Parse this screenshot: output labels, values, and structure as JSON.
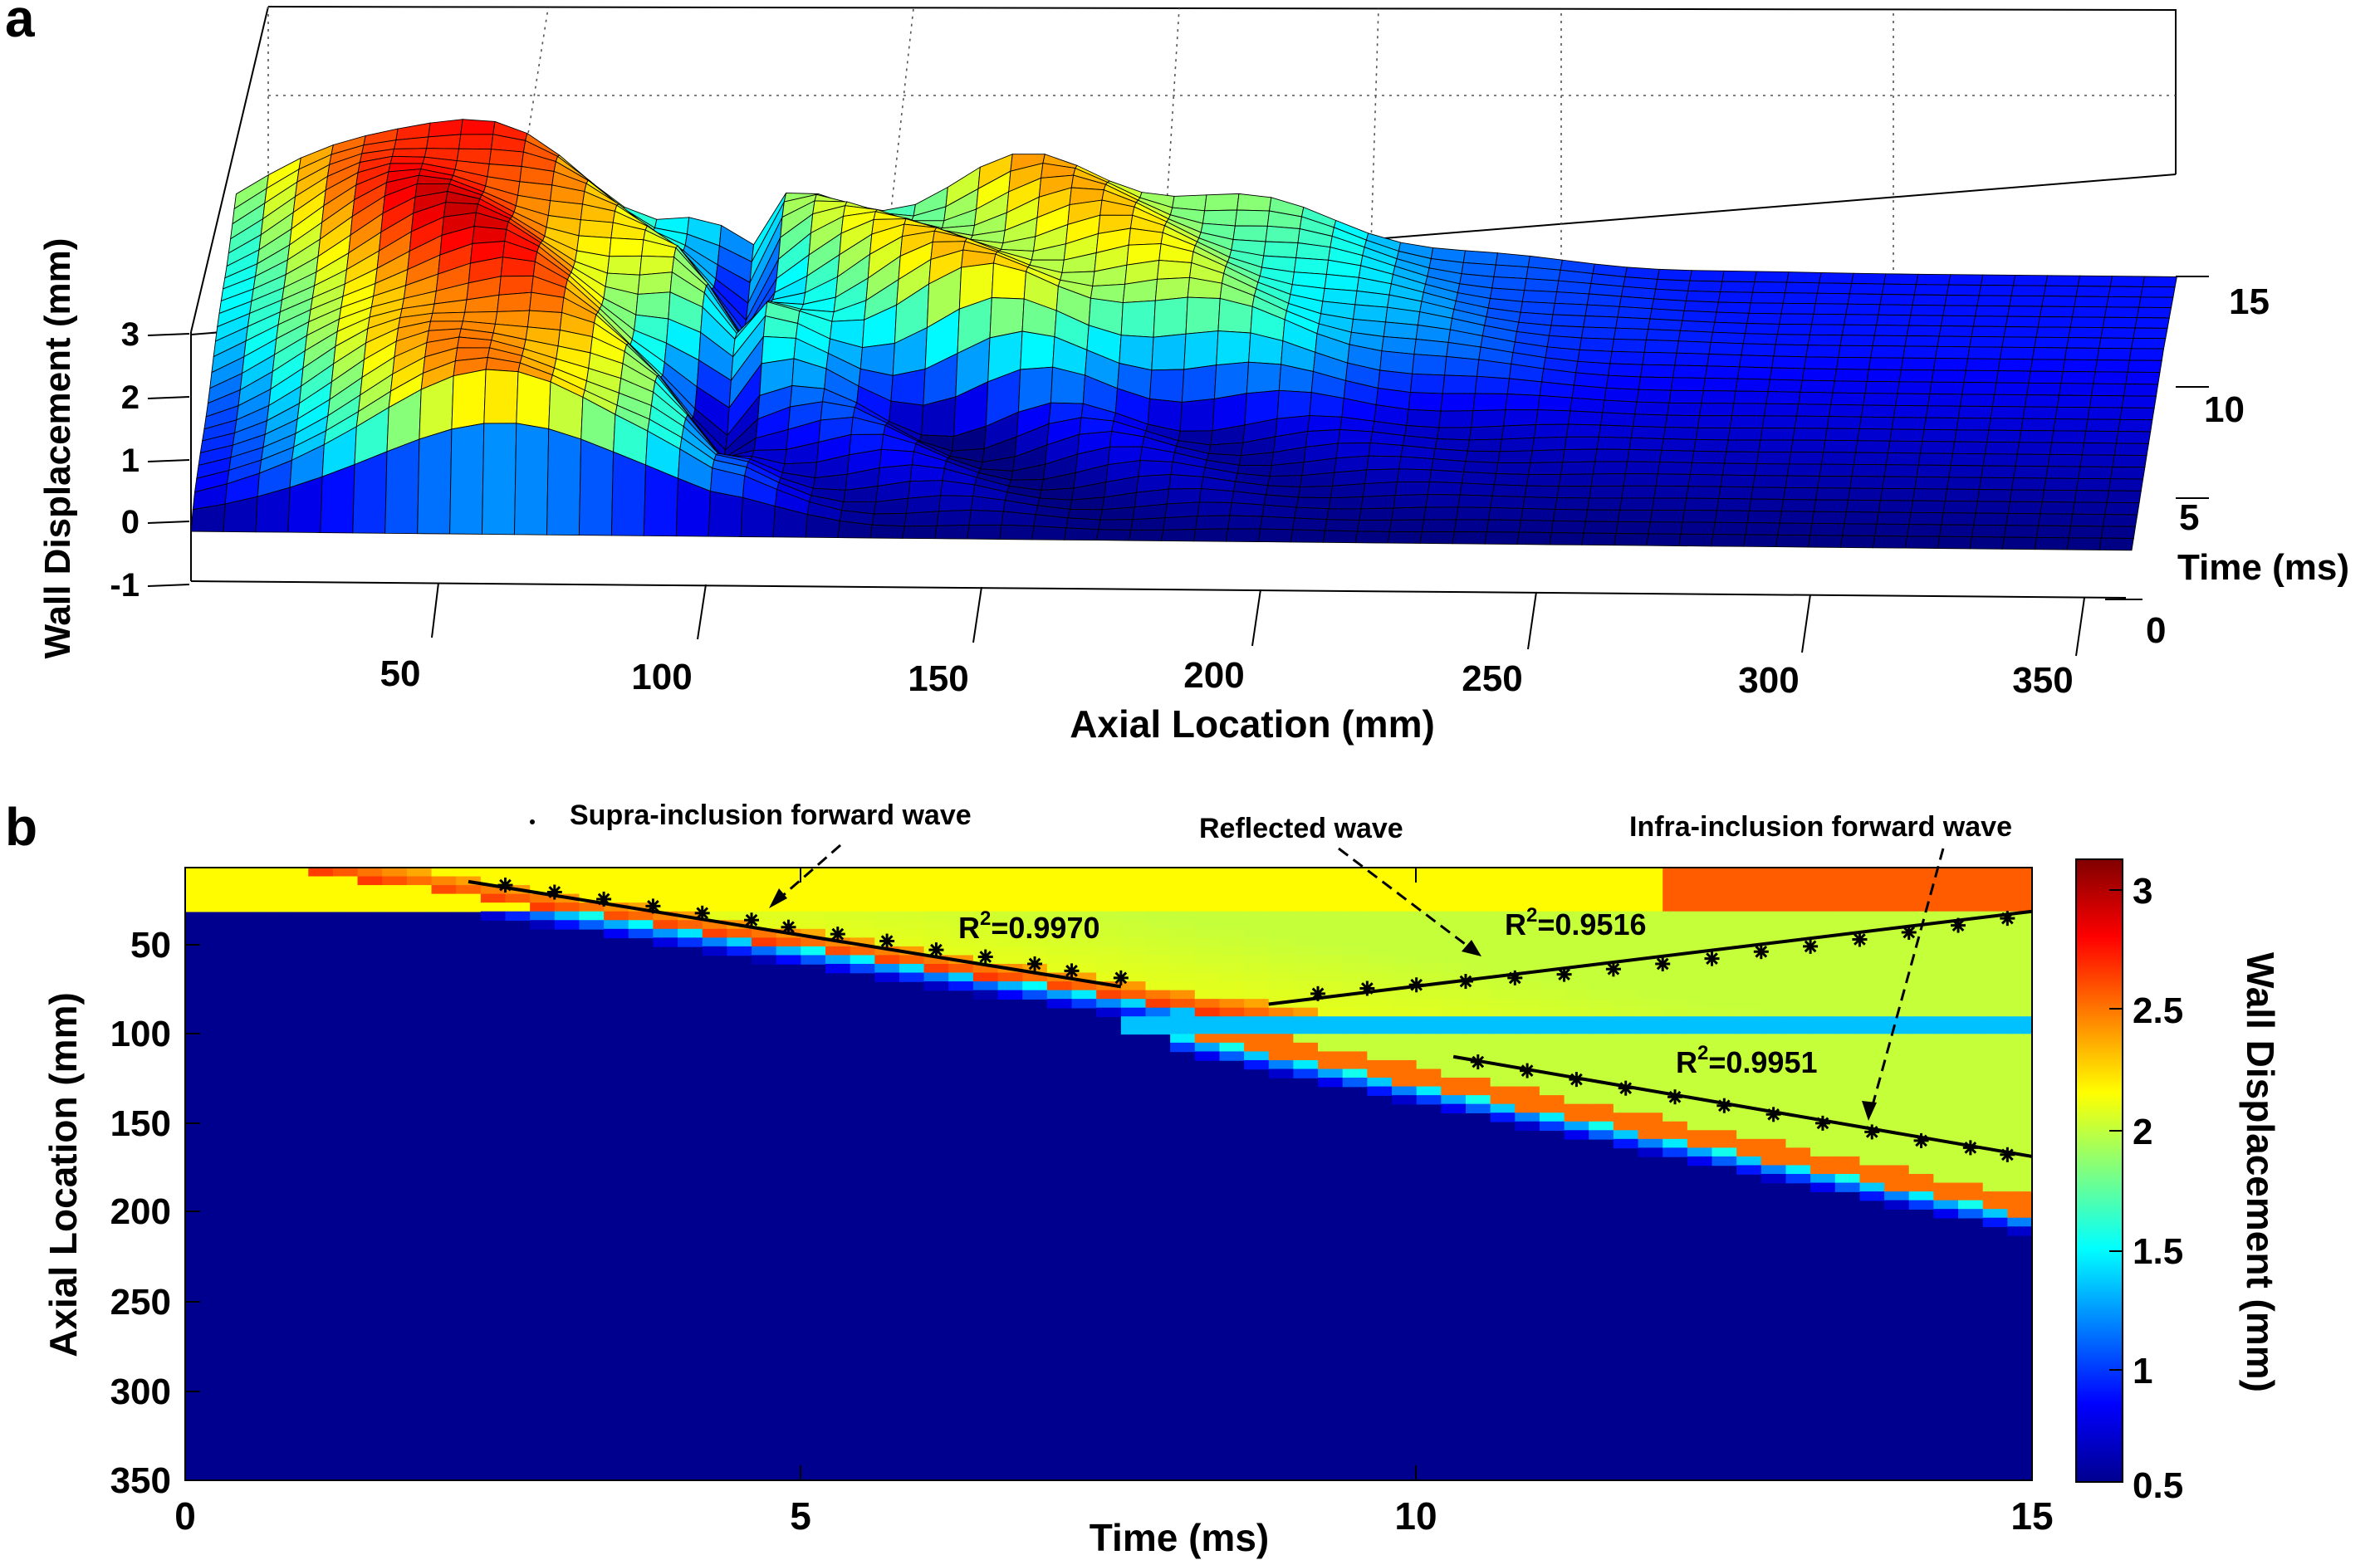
{
  "panels": {
    "a": {
      "letter": "a"
    },
    "b": {
      "letter": "b"
    }
  },
  "chart_data": [
    {
      "panel": "a",
      "type": "surface",
      "zlabel": "Wall Displacement (mm)",
      "xlabel": "Axial Location (mm)",
      "ylabel": "Time (ms)",
      "z_ticks": [
        "3",
        "2",
        "1",
        "0",
        "-1"
      ],
      "x_ticks": [
        "50",
        "100",
        "150",
        "200",
        "250",
        "300",
        "350"
      ],
      "y_ticks": [
        "15",
        "10",
        "5",
        "0"
      ],
      "zlim": [
        -1,
        3
      ],
      "xlim": [
        0,
        380
      ],
      "ylim": [
        0,
        17
      ],
      "grid": true,
      "colormap": "jet"
    },
    {
      "panel": "b",
      "type": "heatmap",
      "xlabel": "Time (ms)",
      "ylabel": "Axial Location (mm)",
      "x_ticks": [
        "0",
        "5",
        "10",
        "15"
      ],
      "y_ticks": [
        "50",
        "100",
        "150",
        "200",
        "250",
        "300",
        "350"
      ],
      "xlim": [
        0,
        15
      ],
      "ylim": [
        0,
        350
      ],
      "y_reversed": true,
      "colorbar": {
        "label": "Wall Displacement (mm)",
        "ticks": [
          "3",
          "2.5",
          "2",
          "1.5",
          "1",
          "0.5"
        ],
        "range": [
          0.5,
          3.05
        ],
        "colormap": "jet"
      },
      "fit_lines": [
        {
          "r2_prefix": "R",
          "r2_sup": "2",
          "r2_value": "=0.9970",
          "x": [
            2.3,
            7.6
          ],
          "y": [
            8,
            68
          ]
        },
        {
          "r2_prefix": "R",
          "r2_sup": "2",
          "r2_value": "=0.9516",
          "x": [
            8.8,
            15
          ],
          "y": [
            78,
            25
          ]
        },
        {
          "r2_prefix": "R",
          "r2_sup": "2",
          "r2_value": "=0.9951",
          "x": [
            10.3,
            15
          ],
          "y": [
            108,
            165
          ]
        }
      ],
      "markers": [
        {
          "x": [
            2.6,
            3.0,
            3.4,
            3.8,
            4.2,
            4.6,
            4.9,
            5.3,
            5.7,
            6.1,
            6.5,
            6.9,
            7.2,
            7.6
          ],
          "y": [
            10,
            14,
            18,
            22,
            26,
            30,
            34,
            38,
            42,
            47,
            51,
            55,
            59,
            63
          ]
        },
        {
          "x": [
            9.2,
            9.6,
            10.0,
            10.4,
            10.8,
            11.2,
            11.6,
            12.0,
            12.4,
            12.8,
            13.2,
            13.6,
            14.0,
            14.4,
            14.8
          ],
          "y": [
            72,
            69,
            67,
            65,
            63,
            61,
            58,
            55,
            52,
            48,
            45,
            41,
            37,
            33,
            29
          ]
        },
        {
          "x": [
            10.5,
            10.9,
            11.3,
            11.7,
            12.1,
            12.5,
            12.9,
            13.3,
            13.7,
            14.1,
            14.5,
            14.8
          ],
          "y": [
            111,
            116,
            121,
            126,
            131,
            136,
            141,
            146,
            151,
            156,
            160,
            164
          ]
        }
      ],
      "annotations": [
        {
          "text": "Supra-inclusion forward wave"
        },
        {
          "text": "Reflected wave"
        },
        {
          "text": "Infra-inclusion forward wave"
        }
      ]
    }
  ]
}
